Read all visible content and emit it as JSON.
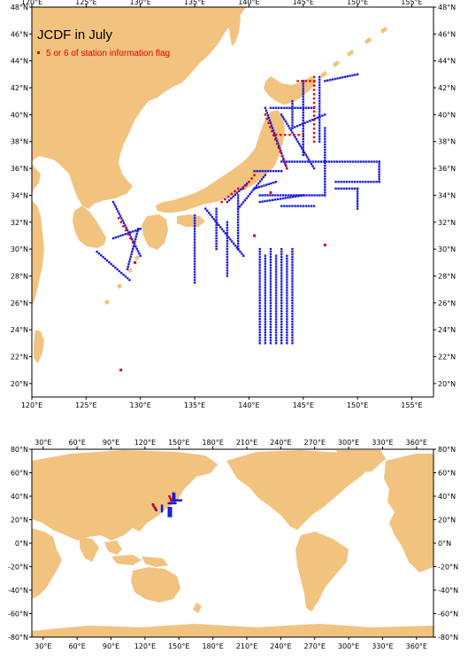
{
  "colors": {
    "land": "#f2c27f",
    "ocean": "#ffffff",
    "station": "#1a1adc",
    "flagged": "#e00000",
    "frame": "#000000"
  },
  "regional_map": {
    "title": "JCDF in July",
    "legend_label": "5 or 6 of station information flag",
    "lon_range": [
      120,
      157
    ],
    "lat_range": [
      19,
      48
    ],
    "x_tick_labels": [
      "120°E",
      "125°E",
      "130°E",
      "135°E",
      "140°E",
      "145°E",
      "150°E",
      "155°E"
    ],
    "y_tick_labels": [
      "20°N",
      "22°N",
      "24°N",
      "26°N",
      "28°N",
      "30°N",
      "32°N",
      "34°N",
      "36°N",
      "38°N",
      "40°N",
      "42°N",
      "44°N",
      "46°N",
      "48°N"
    ]
  },
  "global_map": {
    "lon_range": [
      20,
      375
    ],
    "lat_range": [
      -80,
      80
    ],
    "x_tick_labels": [
      "30°E",
      "60°E",
      "90°E",
      "120°E",
      "150°E",
      "180°E",
      "210°E",
      "240°E",
      "270°E",
      "300°E",
      "330°E",
      "360°E"
    ],
    "y_tick_labels": [
      "80°N",
      "60°N",
      "40°N",
      "20°N",
      "0°N",
      "-20°N",
      "-40°N",
      "-60°N",
      "-80°N"
    ]
  }
}
